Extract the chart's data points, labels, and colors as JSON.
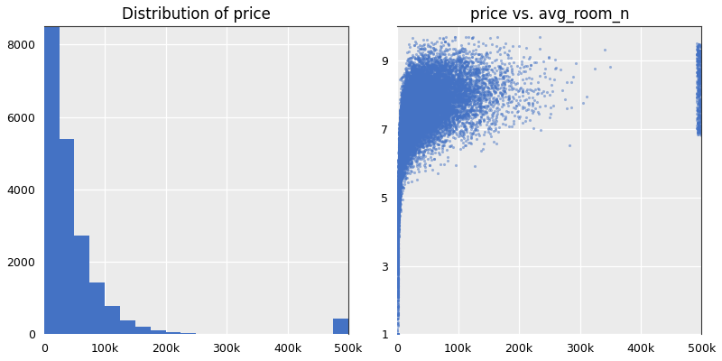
{
  "hist_title": "Distribution of price",
  "scatter_title": "price vs. avg_room_n",
  "hist_color": "#4472C4",
  "scatter_color": "#4472C4",
  "hist_xlim": [
    0,
    500000
  ],
  "hist_ylim": [
    0,
    8500
  ],
  "scatter_xlim": [
    0,
    500000
  ],
  "scatter_ylim": [
    1,
    10
  ],
  "scatter_yticks": [
    1,
    3,
    5,
    7,
    9
  ],
  "hist_xticks": [
    0,
    100000,
    200000,
    300000,
    400000,
    500000
  ],
  "scatter_xticks": [
    0,
    100000,
    200000,
    300000,
    400000,
    500000
  ],
  "hist_yticks": [
    0,
    2000,
    4000,
    6000,
    8000
  ],
  "background_color": "#ebebeb",
  "n_samples": 21613,
  "seed": 42,
  "title_fontsize": 12,
  "tick_fontsize": 9,
  "scatter_alpha": 0.5,
  "scatter_size": 5,
  "hist_bins": 20
}
